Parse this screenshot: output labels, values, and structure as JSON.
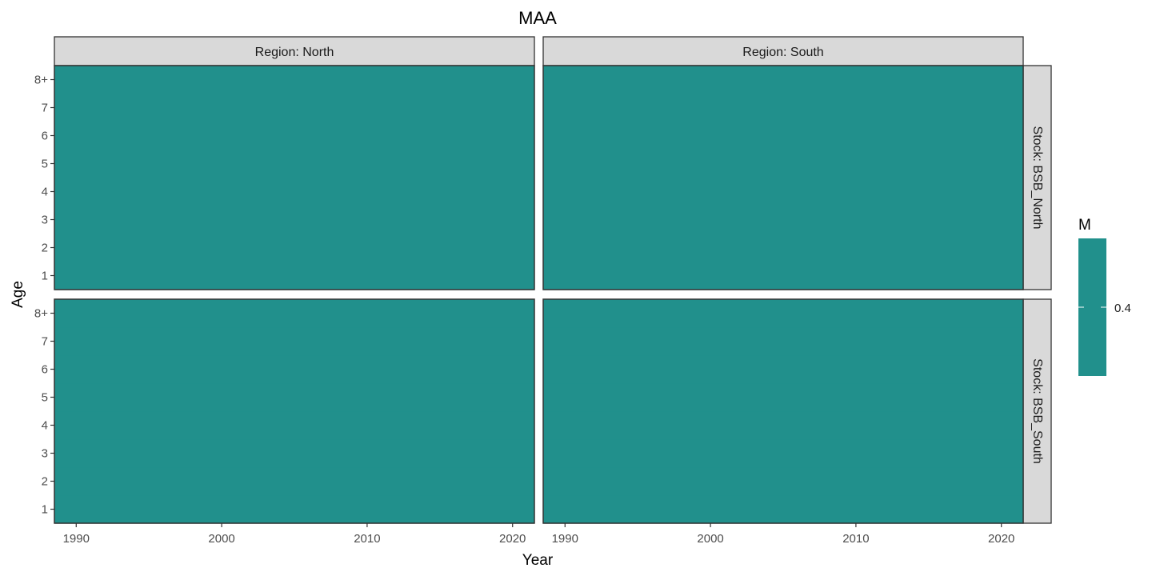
{
  "chart_data": {
    "type": "heatmap",
    "title": "MAA",
    "xlabel": "Year",
    "ylabel": "Age",
    "x_range": [
      1988.5,
      2021.5
    ],
    "x_ticks": [
      1990,
      2000,
      2010,
      2020
    ],
    "ages": [
      "1",
      "2",
      "3",
      "4",
      "5",
      "6",
      "7",
      "8+"
    ],
    "facet_columns": [
      "Region: North",
      "Region: South"
    ],
    "facet_rows": [
      "Stock: BSB_North",
      "Stock: BSB_South"
    ],
    "cells_value": 0.4,
    "legend": {
      "title": "M",
      "ticks": [
        {
          "value": 0.4,
          "label": "0.4"
        }
      ],
      "color": "#21908C",
      "position": "right"
    },
    "grid": false
  },
  "colors": {
    "fill": "#21908C",
    "strip": "#D9D9D9",
    "border": "#333333",
    "text": "#000000",
    "tick_text": "#4D4D4D"
  }
}
